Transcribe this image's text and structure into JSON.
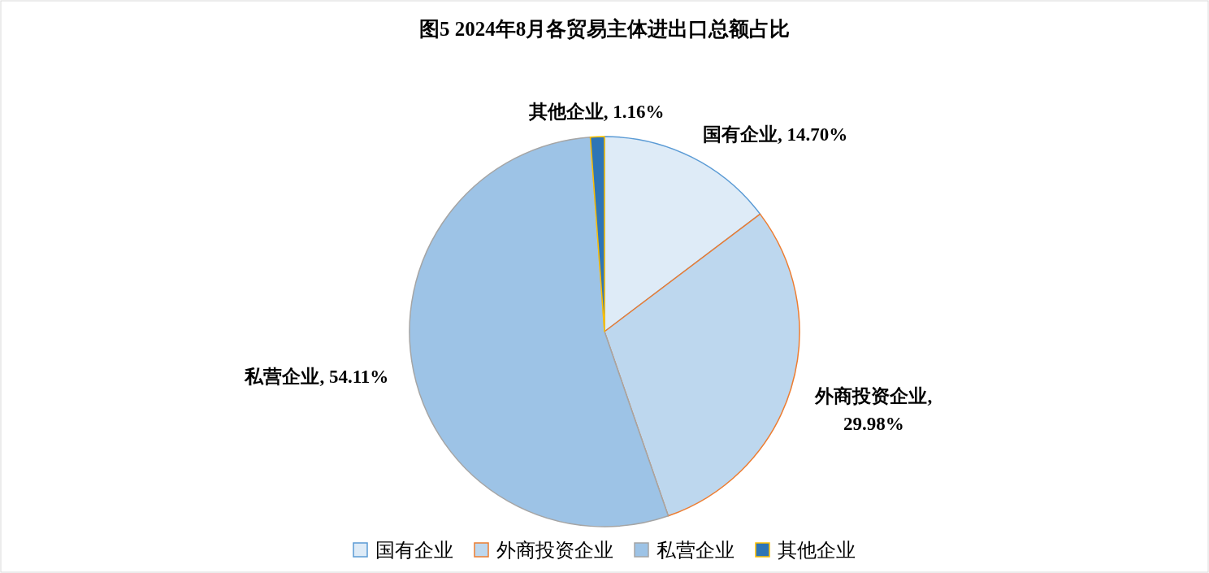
{
  "chart_data": {
    "type": "pie",
    "title": "图5 2024年8月各贸易主体进出口总额占比",
    "categories": [
      "国有企业",
      "外商投资企业",
      "私营企业",
      "其他企业"
    ],
    "values": [
      14.7,
      29.98,
      54.11,
      1.16
    ],
    "value_labels": [
      "国有企业, 14.70%",
      "外商投资企业, 29.98%",
      "私营企业, 54.11%",
      "其他企业, 1.16%"
    ],
    "colors": [
      "#deebf7",
      "#bdd7ee",
      "#9dc3e6",
      "#2e75b6"
    ],
    "legend": "bottom"
  }
}
